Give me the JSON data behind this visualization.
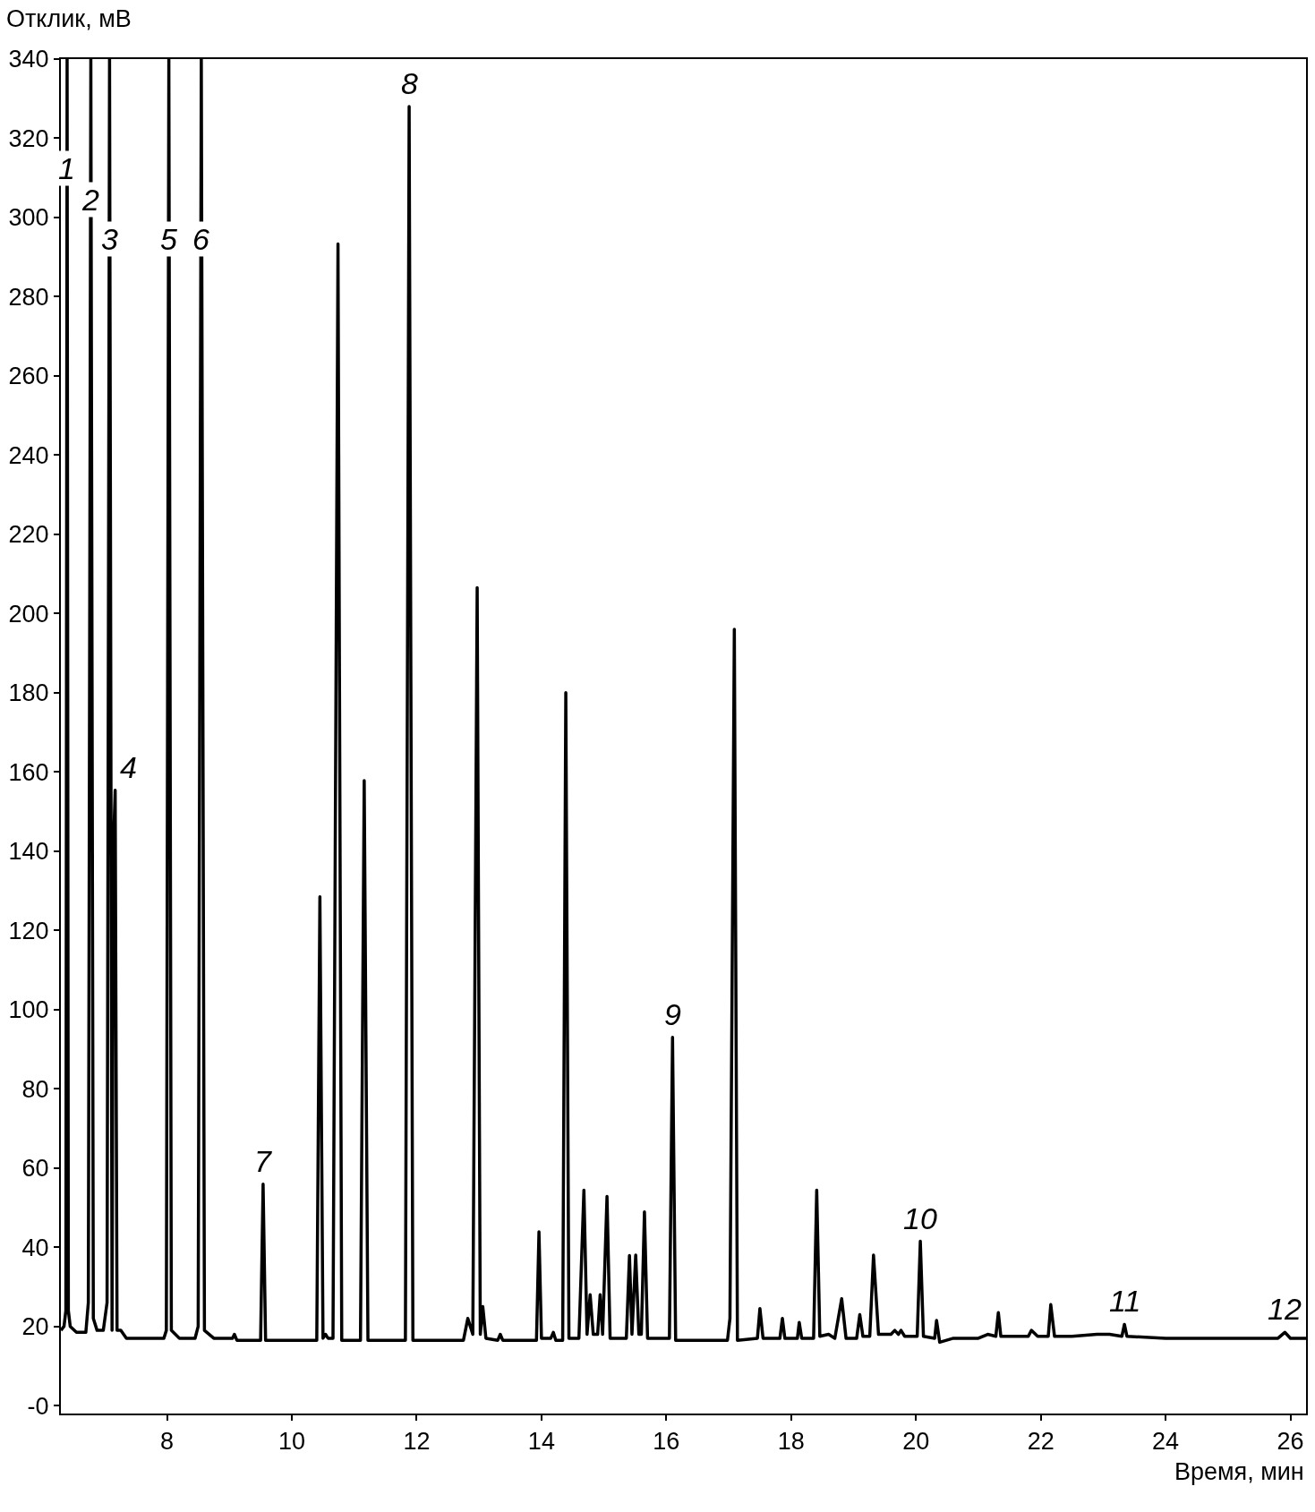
{
  "chart_data": {
    "type": "line",
    "xlabel": "Время, мин",
    "ylabel": "Отклик, мВ",
    "x": [
      6.3,
      6.35,
      6.38,
      6.4,
      6.42,
      6.45,
      6.55,
      6.7,
      6.74,
      6.78,
      6.82,
      6.88,
      6.98,
      7.04,
      7.08,
      7.12,
      7.14,
      7.17,
      7.2,
      7.26,
      7.35,
      7.95,
      7.99,
      8.03,
      8.07,
      8.2,
      8.45,
      8.5,
      8.55,
      8.6,
      8.75,
      9.05,
      9.08,
      9.12,
      9.5,
      9.54,
      9.58,
      10.4,
      10.45,
      10.5,
      10.54,
      10.58,
      10.66,
      10.74,
      10.8,
      11.1,
      11.16,
      11.22,
      11.82,
      11.88,
      11.94,
      12.75,
      12.82,
      12.9,
      12.97,
      13.02,
      13.06,
      13.11,
      13.3,
      13.34,
      13.38,
      13.92,
      13.96,
      14.0,
      14.15,
      14.19,
      14.23,
      14.34,
      14.39,
      14.44,
      14.6,
      14.68,
      14.73,
      14.78,
      14.83,
      14.9,
      14.94,
      14.98,
      15.05,
      15.1,
      15.36,
      15.41,
      15.45,
      15.51,
      15.56,
      15.6,
      15.65,
      15.7,
      16.05,
      16.1,
      16.15,
      16.98,
      17.02,
      17.09,
      17.14,
      17.46,
      17.5,
      17.55,
      17.82,
      17.86,
      17.9,
      18.1,
      18.13,
      18.17,
      18.36,
      18.41,
      18.46,
      18.6,
      18.7,
      18.81,
      18.88,
      19.05,
      19.1,
      19.15,
      19.26,
      19.32,
      19.4,
      19.6,
      19.66,
      19.72,
      19.76,
      19.82,
      20.02,
      20.07,
      20.12,
      20.3,
      20.33,
      20.38,
      20.6,
      21.0,
      21.15,
      21.28,
      21.32,
      21.36,
      21.8,
      21.85,
      21.95,
      22.12,
      22.16,
      22.22,
      22.5,
      22.9,
      23.1,
      23.3,
      23.34,
      23.38,
      24.0,
      24.5,
      25.0,
      25.8,
      25.91,
      26.0,
      26.25
    ],
    "series": [
      {
        "color": "#000000",
        "values": [
          19,
          20,
          24,
          340,
          24,
          20,
          18.5,
          18.5,
          26,
          340,
          22,
          19,
          19,
          26,
          340,
          19,
          140,
          155.4,
          19,
          19,
          17,
          17,
          19,
          340,
          19,
          17,
          17,
          20,
          340,
          19,
          17,
          17,
          18,
          16.5,
          16.5,
          55.9,
          16.5,
          16.5,
          128.5,
          17,
          18,
          17,
          17,
          293.3,
          16.5,
          16.5,
          157.8,
          16.5,
          16.5,
          328,
          16.5,
          16.5,
          22,
          18,
          206.5,
          18,
          25,
          17,
          16.5,
          18,
          16.5,
          16.5,
          43.9,
          17,
          17,
          18.5,
          16.5,
          16.5,
          180,
          17,
          17,
          54.4,
          18,
          28,
          18,
          18,
          28,
          18,
          52.8,
          17,
          17,
          37.9,
          18,
          38,
          18,
          18,
          48.9,
          17,
          17,
          93,
          16.5,
          16.5,
          22,
          196,
          16.5,
          17,
          24.5,
          17,
          17,
          22,
          17,
          17,
          21,
          17,
          17,
          54.4,
          17.5,
          18,
          17,
          27,
          17,
          17,
          23,
          17.5,
          17.5,
          38,
          18,
          18,
          19,
          18,
          19,
          17.5,
          17.5,
          41.5,
          17.5,
          17,
          21.5,
          16,
          17,
          17,
          18,
          17.5,
          23.5,
          17.5,
          17.5,
          19,
          17.5,
          17.5,
          25.5,
          17.5,
          17.5,
          18,
          18,
          17.5,
          20.5,
          17.5,
          17,
          17,
          17,
          17,
          18.5,
          17,
          17
        ]
      }
    ],
    "xlim": [
      6.3,
      26.25
    ],
    "xticks": [
      8,
      10,
      12,
      14,
      16,
      18,
      20,
      22,
      24,
      26
    ],
    "ylim": [
      -2,
      340
    ],
    "yticks": [
      {
        "value": 0,
        "label": "-0"
      },
      20,
      40,
      60,
      80,
      100,
      120,
      140,
      160,
      180,
      200,
      220,
      240,
      260,
      280,
      300,
      320,
      340
    ],
    "marker": "none",
    "line_style": "solid",
    "annotations": [
      {
        "text": "1",
        "x": 6.4,
        "y": 308
      },
      {
        "text": "2",
        "x": 6.78,
        "y": 300
      },
      {
        "text": "3",
        "x": 7.08,
        "y": 290
      },
      {
        "text": "4",
        "x": 7.17,
        "y": 155.4
      },
      {
        "text": "5",
        "x": 8.03,
        "y": 290
      },
      {
        "text": "6",
        "x": 8.55,
        "y": 290
      },
      {
        "text": "7",
        "x": 9.54,
        "y": 55.9
      },
      {
        "text": "8",
        "x": 11.88,
        "y": 328
      },
      {
        "text": "9",
        "x": 16.1,
        "y": 93
      },
      {
        "text": "10",
        "x": 20.07,
        "y": 41.5
      },
      {
        "text": "11",
        "x": 23.34,
        "y": 20.5
      },
      {
        "text": "12",
        "x": 25.91,
        "y": 18.5
      }
    ]
  }
}
